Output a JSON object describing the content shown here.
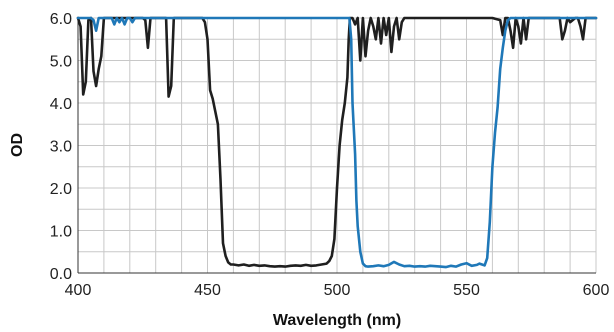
{
  "chart_data": {
    "type": "line",
    "xlabel": "Wavelength (nm)",
    "ylabel": "OD",
    "xlim": [
      400,
      600
    ],
    "ylim": [
      0.0,
      6.0
    ],
    "x_ticks": [
      400,
      450,
      500,
      550,
      600
    ],
    "x_tick_labels": [
      "400",
      "450",
      "500",
      "550",
      "600"
    ],
    "y_ticks": [
      0.0,
      1.0,
      2.0,
      3.0,
      4.0,
      5.0,
      6.0
    ],
    "y_tick_labels": [
      "0.0",
      "1.0",
      "2.0",
      "3.0",
      "4.0",
      "5.0",
      "6.0"
    ],
    "x_minor_step": 10,
    "y_minor_step": 0.5,
    "grid": true,
    "series": [
      {
        "color": "#1f1f1f",
        "x": [
          400,
          401,
          402,
          403,
          404,
          405,
          406,
          407,
          408,
          409,
          410,
          411,
          413,
          415,
          417,
          419,
          421,
          423,
          425,
          426,
          427,
          428,
          430,
          432,
          434,
          435,
          436,
          437,
          438,
          440,
          443,
          446,
          448,
          449,
          450,
          451,
          452,
          453,
          454,
          455,
          456,
          457,
          458,
          459,
          460,
          462,
          464,
          466,
          468,
          470,
          472,
          474,
          476,
          478,
          480,
          482,
          484,
          486,
          488,
          490,
          492,
          494,
          496,
          497,
          498,
          499,
          500,
          501,
          502,
          503,
          504,
          504.5,
          505,
          506,
          507,
          508,
          509,
          510,
          511,
          512,
          513,
          514,
          515,
          516,
          517,
          518,
          519,
          520,
          521,
          522,
          523,
          524,
          525,
          526,
          527,
          528,
          529,
          530,
          540,
          550,
          560,
          563,
          564,
          565,
          566,
          567,
          568,
          569,
          570,
          571,
          572,
          573,
          574,
          575,
          580,
          586,
          587,
          588,
          589,
          590,
          592,
          593,
          594,
          595,
          596,
          600
        ],
        "y": [
          6.0,
          5.8,
          4.2,
          4.5,
          5.95,
          6.0,
          4.75,
          4.4,
          4.8,
          5.1,
          6.0,
          6.0,
          6.0,
          6.0,
          6.0,
          6.0,
          6.0,
          6.0,
          6.0,
          5.95,
          5.3,
          6.0,
          6.0,
          6.0,
          6.0,
          4.15,
          4.4,
          6.0,
          6.0,
          6.0,
          6.0,
          6.0,
          6.0,
          5.9,
          5.5,
          4.3,
          4.1,
          3.8,
          3.5,
          2.2,
          0.7,
          0.4,
          0.25,
          0.2,
          0.2,
          0.18,
          0.2,
          0.17,
          0.19,
          0.17,
          0.18,
          0.16,
          0.15,
          0.16,
          0.15,
          0.17,
          0.18,
          0.17,
          0.19,
          0.17,
          0.18,
          0.2,
          0.22,
          0.28,
          0.4,
          0.8,
          2.0,
          3.0,
          3.6,
          4.0,
          4.6,
          5.5,
          6.0,
          6.0,
          5.85,
          6.0,
          5.0,
          6.0,
          5.1,
          5.7,
          6.0,
          5.8,
          5.5,
          6.0,
          5.4,
          6.0,
          5.6,
          6.0,
          5.2,
          5.8,
          6.0,
          5.5,
          5.9,
          6.0,
          6.0,
          6.0,
          6.0,
          6.0,
          6.0,
          6.0,
          6.0,
          5.95,
          5.6,
          6.0,
          6.0,
          5.7,
          5.3,
          6.0,
          5.8,
          5.4,
          6.0,
          5.5,
          6.0,
          6.0,
          6.0,
          6.0,
          5.5,
          5.7,
          6.0,
          5.9,
          6.0,
          6.0,
          5.8,
          5.5,
          6.0,
          6.0
        ]
      },
      {
        "color": "#1f78b8",
        "x": [
          400,
          402,
          405,
          406,
          407,
          408,
          409,
          410,
          413,
          414,
          415,
          416,
          417,
          418,
          419,
          420,
          421,
          422,
          430,
          440,
          450,
          460,
          470,
          480,
          490,
          500,
          504,
          504.8,
          505.5,
          506,
          507,
          507.5,
          508,
          509,
          510,
          511,
          512,
          514,
          516,
          518,
          520,
          522,
          524,
          526,
          528,
          530,
          532,
          534,
          536,
          538,
          540,
          542,
          544,
          546,
          548,
          550,
          552,
          554,
          555,
          556,
          557,
          558,
          559,
          560,
          561,
          562,
          563,
          564,
          565,
          566,
          567,
          570,
          580,
          590,
          600
        ],
        "y": [
          6.0,
          6.0,
          6.0,
          5.95,
          5.7,
          6.0,
          6.0,
          6.0,
          6.0,
          5.85,
          6.0,
          5.9,
          6.0,
          5.85,
          6.0,
          6.0,
          5.9,
          6.0,
          6.0,
          6.0,
          6.0,
          6.0,
          6.0,
          6.0,
          6.0,
          6.0,
          6.0,
          6.0,
          5.5,
          4.0,
          2.8,
          1.7,
          1.1,
          0.5,
          0.22,
          0.16,
          0.15,
          0.16,
          0.18,
          0.16,
          0.19,
          0.26,
          0.2,
          0.16,
          0.17,
          0.15,
          0.16,
          0.15,
          0.17,
          0.16,
          0.15,
          0.14,
          0.17,
          0.15,
          0.2,
          0.23,
          0.17,
          0.19,
          0.22,
          0.2,
          0.18,
          0.35,
          1.2,
          2.5,
          3.3,
          3.9,
          4.8,
          5.3,
          5.7,
          5.95,
          6.0,
          6.0,
          6.0,
          6.0,
          6.0
        ]
      }
    ]
  }
}
